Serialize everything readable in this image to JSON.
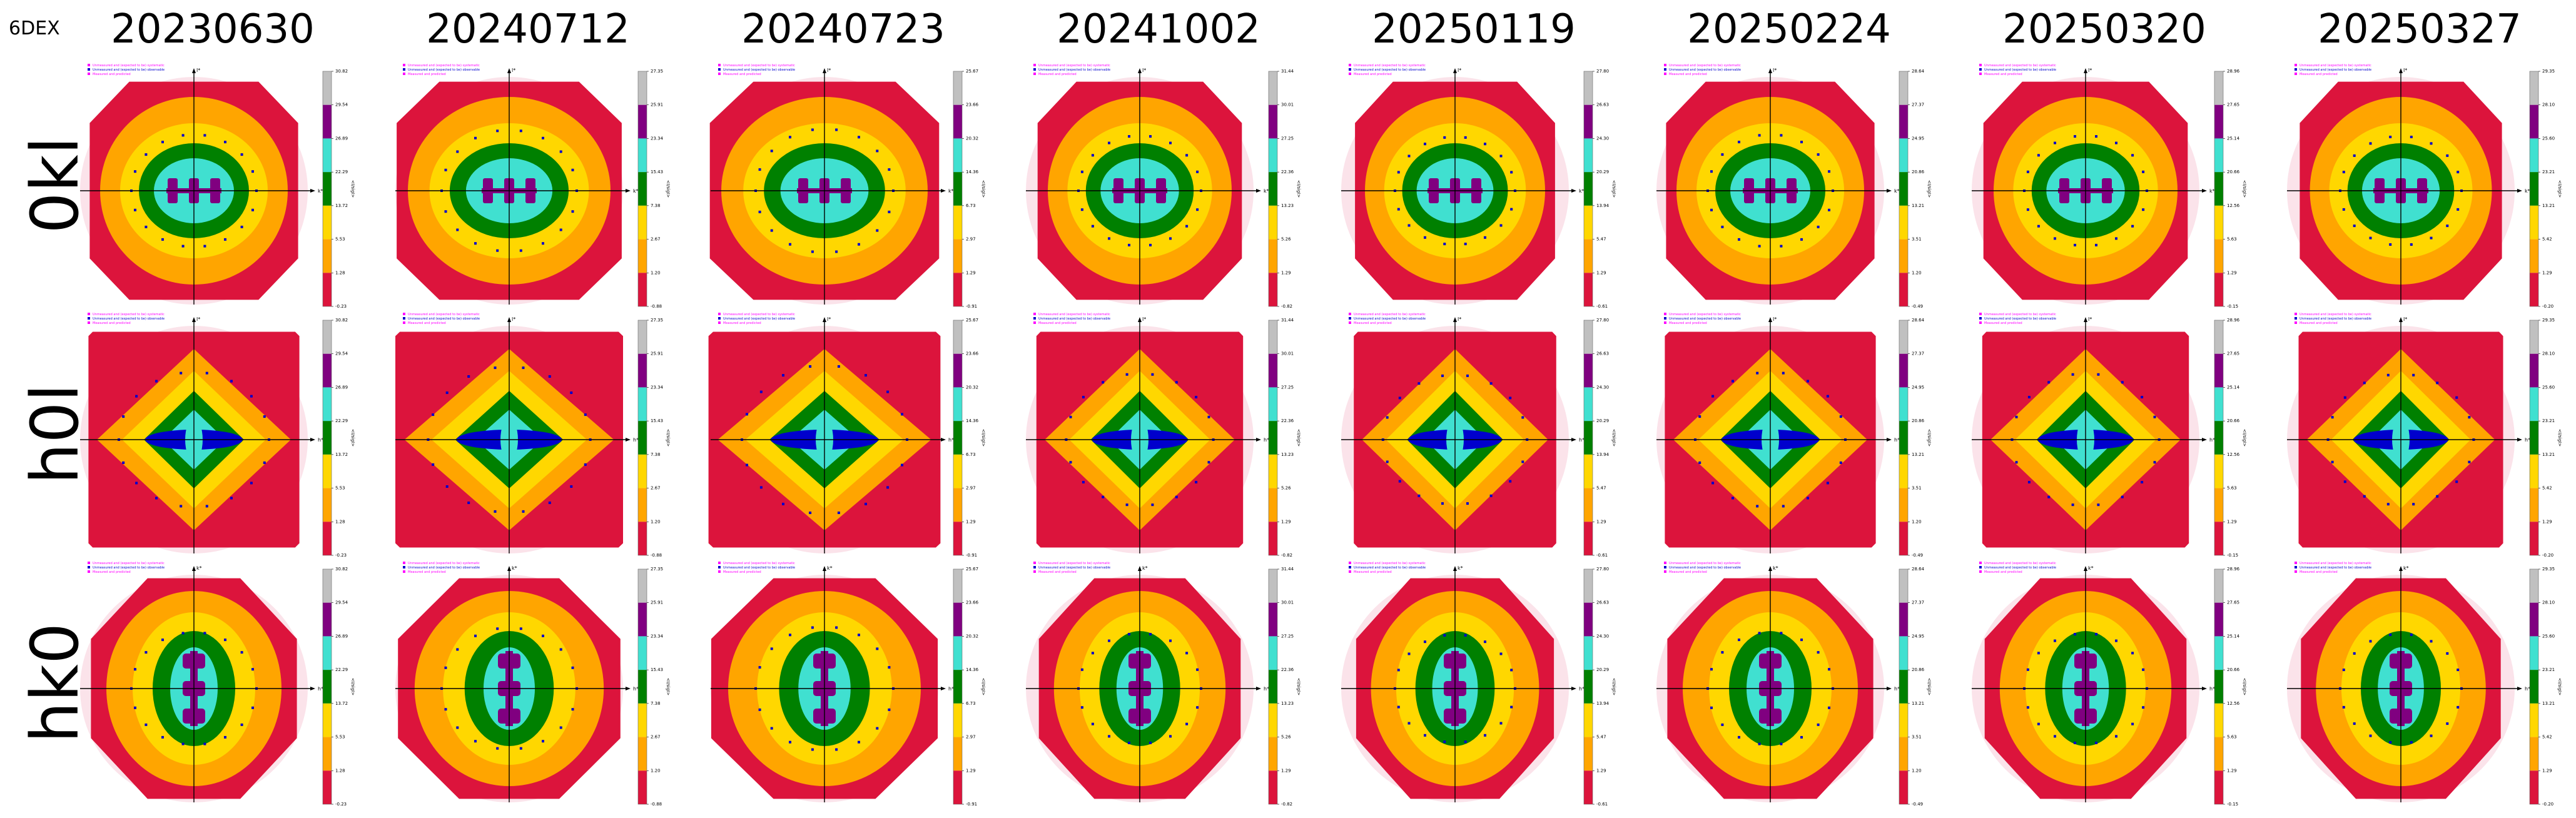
{
  "pdb_id": "6DEX",
  "dates": [
    "20230630",
    "20240712",
    "20240723",
    "20241002",
    "20250119",
    "20250224",
    "20250320",
    "20250327"
  ],
  "planes": [
    "0kl",
    "h0l",
    "hk0"
  ],
  "axes": {
    "0kl": {
      "h": "k*",
      "v": "l*"
    },
    "h0l": {
      "h": "h*",
      "v": "l*"
    },
    "hk0": {
      "h": "h*",
      "v": "k*"
    }
  },
  "legend": [
    "Unmeasured and (expected to be) systematic",
    "Unmeasured and (expected to be) observable",
    "Measured and predicted"
  ],
  "colorbar_label": "<I/sigI>",
  "colors": [
    "#dc143c",
    "#ffa500",
    "#ffd700",
    "#008000",
    "#40e0d0",
    "#800080",
    "#c0c0c0"
  ],
  "marker_colors": {
    "unmeasured_systematic": "#ff00ff",
    "unmeasured_observable": "#0000cd"
  },
  "chart_data": {
    "type": "heatmap",
    "colorbar_ticks": [
      [
        "-0.23",
        "1.28",
        "5.53",
        "13.72",
        "22.29",
        "26.89",
        "29.54",
        "30.82"
      ],
      [
        "-0.88",
        "1.20",
        "2.67",
        "7.38",
        "15.43",
        "23.34",
        "25.91",
        "27.35"
      ],
      [
        "-0.91",
        "1.29",
        "2.97",
        "6.73",
        "14.36",
        "20.32",
        "23.66",
        "25.67"
      ],
      [
        "-0.82",
        "1.29",
        "5.26",
        "13.23",
        "22.36",
        "27.25",
        "30.01",
        "31.44"
      ],
      [
        "-0.61",
        "1.29",
        "5.47",
        "13.94",
        "20.29",
        "24.30",
        "26.63",
        "27.80"
      ],
      [
        "-0.49",
        "1.20",
        "3.51",
        "13.21",
        "20.86",
        "24.95",
        "27.37",
        "28.64"
      ],
      [
        "-0.15",
        "1.29",
        "5.63",
        "12.56",
        "20.66",
        "25.14",
        "27.65",
        "28.96"
      ],
      [
        "-0.20",
        "1.29",
        "5.42",
        "13.21",
        "23.21",
        "25.60",
        "28.10",
        "29.35"
      ]
    ],
    "bin_colors": [
      "#dc143c",
      "#ffa500",
      "#ffd700",
      "#008000",
      "#40e0d0",
      "#800080",
      "#c0c0c0"
    ]
  }
}
